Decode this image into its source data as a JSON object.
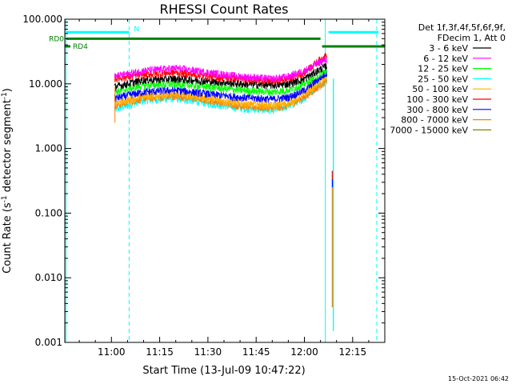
{
  "chart_data": {
    "type": "line",
    "title": "RHESSI Count Rates",
    "xlabel": "Start Time (13-Jul-09 10:47:22)",
    "ylabel_main": "Count Rate (s",
    "ylabel_sup": "-1",
    "ylabel_mid": " detector segment",
    "ylabel_sup2": "-1",
    "ylabel_end": ")",
    "yscale": "log",
    "ylim": [
      0.001,
      100
    ],
    "xlim_minutes": [
      -14.5,
      85
    ],
    "x_ticks": [
      {
        "label": "11:00",
        "minute": 0
      },
      {
        "label": "11:15",
        "minute": 15
      },
      {
        "label": "11:30",
        "minute": 30
      },
      {
        "label": "11:45",
        "minute": 45
      },
      {
        "label": "12:00",
        "minute": 60
      },
      {
        "label": "12:15",
        "minute": 75
      }
    ],
    "y_ticks": [
      {
        "label": "100.000",
        "value": 100
      },
      {
        "label": "10.000",
        "value": 10
      },
      {
        "label": "1.000",
        "value": 1
      },
      {
        "label": "0.100",
        "value": 0.1
      },
      {
        "label": "0.010",
        "value": 0.01
      },
      {
        "label": "0.001",
        "value": 0.001
      }
    ],
    "legend_header": [
      "Det 1f,3f,4f,5f,6f,9f,",
      "FDecim 1, Att 0"
    ],
    "legend_position": "right",
    "series": [
      {
        "name": "3 - 6 keV",
        "color": "#000000",
        "values": [
          [
            1,
            9
          ],
          [
            10,
            11.5
          ],
          [
            20,
            12
          ],
          [
            30,
            11
          ],
          [
            40,
            10
          ],
          [
            50,
            9.5
          ],
          [
            55,
            10
          ],
          [
            60,
            12
          ],
          [
            65,
            17
          ],
          [
            67,
            19
          ]
        ]
      },
      {
        "name": "6 - 12 keV",
        "color": "#ff00ff",
        "values": [
          [
            1,
            13
          ],
          [
            10,
            16
          ],
          [
            20,
            17.5
          ],
          [
            30,
            15
          ],
          [
            40,
            13
          ],
          [
            50,
            12
          ],
          [
            55,
            13
          ],
          [
            60,
            16
          ],
          [
            65,
            22
          ],
          [
            67,
            24
          ]
        ]
      },
      {
        "name": "12 - 25 keV",
        "color": "#00ff00",
        "values": [
          [
            1,
            7.5
          ],
          [
            10,
            9.5
          ],
          [
            20,
            10
          ],
          [
            30,
            9
          ],
          [
            40,
            8
          ],
          [
            50,
            7.5
          ],
          [
            55,
            8
          ],
          [
            60,
            10
          ],
          [
            65,
            14.5
          ],
          [
            67,
            16
          ]
        ]
      },
      {
        "name": "25 - 50 keV",
        "color": "#00ffff",
        "values": [
          [
            1,
            4
          ],
          [
            10,
            5.5
          ],
          [
            20,
            6
          ],
          [
            30,
            5
          ],
          [
            40,
            4.2
          ],
          [
            50,
            3.9
          ],
          [
            55,
            4.5
          ],
          [
            60,
            6
          ],
          [
            65,
            10
          ],
          [
            67,
            12
          ]
        ]
      },
      {
        "name": "50 - 100 keV",
        "color": "#ffb000",
        "values": [
          [
            1,
            5
          ],
          [
            10,
            6.5
          ],
          [
            20,
            7
          ],
          [
            30,
            6
          ],
          [
            40,
            5
          ],
          [
            50,
            4.6
          ],
          [
            55,
            5
          ],
          [
            60,
            7
          ],
          [
            65,
            11
          ],
          [
            67,
            13
          ]
        ]
      },
      {
        "name": "100 - 300 keV",
        "color": "#ff0000",
        "values": [
          [
            1,
            12
          ],
          [
            10,
            14
          ],
          [
            20,
            15
          ],
          [
            30,
            13
          ],
          [
            40,
            12
          ],
          [
            50,
            11
          ],
          [
            55,
            12
          ],
          [
            60,
            15
          ],
          [
            65,
            24
          ],
          [
            67,
            28
          ]
        ]
      },
      {
        "name": "300 - 800 keV",
        "color": "#0000ff",
        "values": [
          [
            1,
            6
          ],
          [
            10,
            7.5
          ],
          [
            20,
            8
          ],
          [
            30,
            7
          ],
          [
            40,
            6.2
          ],
          [
            50,
            5.8
          ],
          [
            55,
            6.2
          ],
          [
            60,
            8
          ],
          [
            65,
            12.5
          ],
          [
            67,
            15
          ]
        ]
      },
      {
        "name": "800 - 7000 keV",
        "color": "#ff7f00",
        "values": [
          [
            1,
            4.6
          ],
          [
            10,
            6
          ],
          [
            20,
            6.5
          ],
          [
            30,
            5.6
          ],
          [
            40,
            4.6
          ],
          [
            50,
            4.2
          ],
          [
            55,
            4.6
          ],
          [
            60,
            6.3
          ],
          [
            65,
            9.5
          ],
          [
            67,
            11
          ]
        ]
      },
      {
        "name": "7000 - 15000 keV",
        "color": "#808000",
        "values": []
      }
    ],
    "spikes": [
      {
        "minute": 68.7,
        "top": 0.45,
        "bottom": 0.25,
        "colors": [
          "#ff0000",
          "#0000ff"
        ]
      },
      {
        "minute": 68.7,
        "top": 0.25,
        "bottom": 0.0035,
        "colors": [
          "#ff7f00"
        ]
      },
      {
        "minute": 69.0,
        "top": 12,
        "bottom": 0.0015,
        "colors": [
          "#00ffff"
        ]
      }
    ],
    "bars": [
      {
        "label": "RD0",
        "color": "#008000",
        "y": 50,
        "x0": -14.5,
        "x1": 65
      },
      {
        "label": "RD4",
        "color": "#008000",
        "y": 38,
        "x0": 65,
        "x1": 85,
        "left_stub": true
      },
      {
        "label": "N",
        "color": "#00ffff",
        "y": 63,
        "x0": -14.5,
        "x1": 5.5
      },
      {
        "label": "",
        "color": "#00ffff",
        "y": 63,
        "x0": 67,
        "x1": 83
      }
    ],
    "vlines": [
      {
        "minute": 5.5,
        "color": "#00ffff",
        "style": "dashed"
      },
      {
        "minute": 66.5,
        "color": "#00ffff",
        "style": "solid"
      },
      {
        "minute": 82.5,
        "color": "#00ffff",
        "style": "dashed"
      },
      {
        "minute": -14.2,
        "color": "#00ffff",
        "style": "solid"
      }
    ],
    "footer": "15-Oct-2021 06:42"
  }
}
